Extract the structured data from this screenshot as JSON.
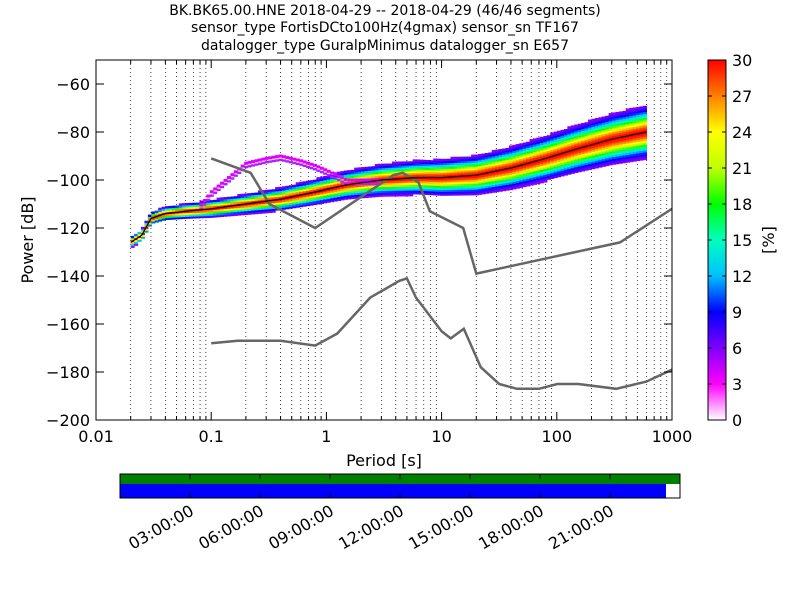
{
  "titles": {
    "line1": "BK.BK65.00.HNE   2018-04-29 -- 2018-04-29  (46/46 segments)",
    "line2": "sensor_type FortisDCto100Hz(4gmax) sensor_sn TF167",
    "line3": "datalogger_type GuralpMinimus datalogger_sn E657"
  },
  "chart_data": {
    "type": "heatmap",
    "xlabel": "Period [s]",
    "ylabel": "Power [dB]",
    "xscale": "log",
    "xlim": [
      0.01,
      1000
    ],
    "ylim": [
      -200,
      -50
    ],
    "x_ticks": [
      {
        "value": 0.01,
        "label": "0.01"
      },
      {
        "value": 0.1,
        "label": "0.1"
      },
      {
        "value": 1,
        "label": "1"
      },
      {
        "value": 10,
        "label": "10"
      },
      {
        "value": 100,
        "label": "100"
      },
      {
        "value": 1000,
        "label": "1000"
      }
    ],
    "y_ticks": [
      {
        "value": -200,
        "label": "−200"
      },
      {
        "value": -180,
        "label": "−180"
      },
      {
        "value": -160,
        "label": "−160"
      },
      {
        "value": -140,
        "label": "−140"
      },
      {
        "value": -120,
        "label": "−120"
      },
      {
        "value": -100,
        "label": "−100"
      },
      {
        "value": -80,
        "label": "−80"
      },
      {
        "value": -60,
        "label": "−60"
      }
    ],
    "grid": "vertical dotted at log subdivisions",
    "colorbar": {
      "label": "[%]",
      "min": 0,
      "max": 30,
      "ticks": [
        {
          "value": 0,
          "label": "0"
        },
        {
          "value": 3,
          "label": "3"
        },
        {
          "value": 6,
          "label": "6"
        },
        {
          "value": 9,
          "label": "9"
        },
        {
          "value": 12,
          "label": "12"
        },
        {
          "value": 15,
          "label": "15"
        },
        {
          "value": 18,
          "label": "18"
        },
        {
          "value": 21,
          "label": "21"
        },
        {
          "value": 24,
          "label": "24"
        },
        {
          "value": 27,
          "label": "27"
        },
        {
          "value": 30,
          "label": "30"
        }
      ],
      "colormap": [
        "#ffffff",
        "#ff00ff",
        "#8000ff",
        "#0000ff",
        "#00c0ff",
        "#00ffc0",
        "#00ff00",
        "#c0ff00",
        "#ffff00",
        "#ff8000",
        "#ff0000"
      ]
    },
    "noise_models": [
      {
        "x": [
          0.1,
          0.17,
          0.4,
          0.8,
          1.24,
          2.4,
          4.3,
          5.0,
          6.0,
          10.0,
          12.0,
          15.6,
          21.9,
          31.6,
          45.0,
          70.0,
          101.0,
          154.0,
          328.0,
          600.0,
          1000.0
        ],
        "y": [
          -168,
          -167,
          -167,
          -169,
          -164,
          -149,
          -142,
          -141,
          -149,
          -163,
          -166,
          -162,
          -178,
          -185,
          -187,
          -187,
          -185,
          -185,
          -187,
          -184,
          -179
        ]
      },
      {
        "x": [
          0.1,
          0.22,
          0.32,
          0.8,
          3.8,
          4.6,
          6.3,
          7.9,
          15.4,
          20.0,
          354.0,
          1000.0
        ],
        "y": [
          -91,
          -97,
          -110,
          -120,
          -98,
          -97,
          -101,
          -113,
          -120,
          -139,
          -126,
          -112
        ]
      }
    ],
    "mode_line": {
      "x": [
        0.02,
        0.025,
        0.03,
        0.04,
        0.06,
        0.1,
        0.2,
        0.4,
        0.8,
        1.5,
        3,
        6,
        10,
        20,
        40,
        80,
        150,
        300,
        600
      ],
      "y": [
        -126,
        -123,
        -116,
        -114,
        -113,
        -112,
        -110,
        -108,
        -105,
        -102,
        -100,
        -99,
        -99,
        -98,
        -95,
        -91,
        -87,
        -83,
        -80
      ]
    },
    "upper_band": {
      "x": [
        0.08,
        0.1,
        0.15,
        0.2,
        0.3,
        0.4,
        0.6,
        0.8,
        1.0,
        1.5,
        2,
        3
      ],
      "y": [
        -111,
        -105,
        -98,
        -93,
        -91,
        -90,
        -92,
        -94,
        -96,
        -100,
        -100,
        -100
      ]
    }
  },
  "timeline": {
    "tick_labels": [
      "03:00:00",
      "06:00:00",
      "09:00:00",
      "12:00:00",
      "15:00:00",
      "18:00:00",
      "21:00:00"
    ],
    "colors": {
      "top_bar": "#008000",
      "bottom_bar": "#0000ff"
    },
    "coverage_fraction": 0.975
  }
}
